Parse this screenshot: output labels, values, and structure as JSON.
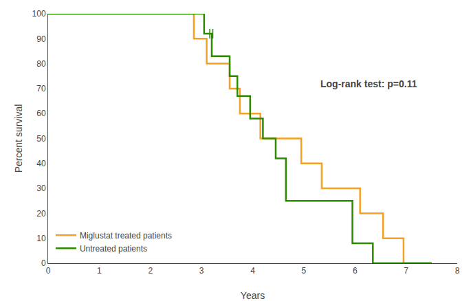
{
  "chart_data": {
    "type": "step",
    "xlabel": "Years",
    "ylabel": "Percent survival",
    "series": [
      {
        "name": "Miglustat treated patients",
        "color": "#F5A020",
        "x": [
          0,
          2.85,
          2.85,
          3.1,
          3.1,
          3.55,
          3.55,
          3.75,
          3.75,
          4.15,
          4.15,
          4.95,
          4.95,
          5.35,
          5.35,
          6.1,
          6.1,
          6.55,
          6.55,
          6.95,
          6.95,
          7.5
        ],
        "values": [
          100,
          100,
          90,
          90,
          80,
          80,
          70,
          70,
          60,
          60,
          50,
          50,
          40,
          40,
          30,
          30,
          20,
          20,
          10,
          10,
          0,
          0
        ]
      },
      {
        "name": "Untreated patients",
        "color": "#2E8B00",
        "x": [
          0,
          3.05,
          3.05,
          3.2,
          3.2,
          3.55,
          3.55,
          3.7,
          3.7,
          3.95,
          3.95,
          4.2,
          4.2,
          4.45,
          4.45,
          4.65,
          4.65,
          5.95,
          5.95,
          6.35,
          6.35,
          6.55,
          6.55,
          7.5
        ],
        "values": [
          100,
          100,
          92,
          92,
          83,
          83,
          75,
          75,
          67,
          67,
          58,
          58,
          50,
          50,
          42,
          42,
          25,
          25,
          8,
          8,
          0,
          0,
          0,
          0
        ],
        "censors": {
          "x": [
            3.16,
            3.22
          ],
          "values": [
            92,
            92
          ]
        }
      }
    ],
    "xlim": [
      0,
      8
    ],
    "ylim": [
      0,
      100
    ],
    "xticks": [
      0,
      1,
      2,
      3,
      4,
      5,
      6,
      7,
      8
    ],
    "yticks": [
      0,
      10,
      20,
      30,
      40,
      50,
      60,
      70,
      80,
      90,
      100
    ],
    "annotations": [
      {
        "text": "Log-rank test: p=0.11",
        "x": 5.3,
        "y": 72
      }
    ],
    "legend": "lower left",
    "grid": false
  }
}
